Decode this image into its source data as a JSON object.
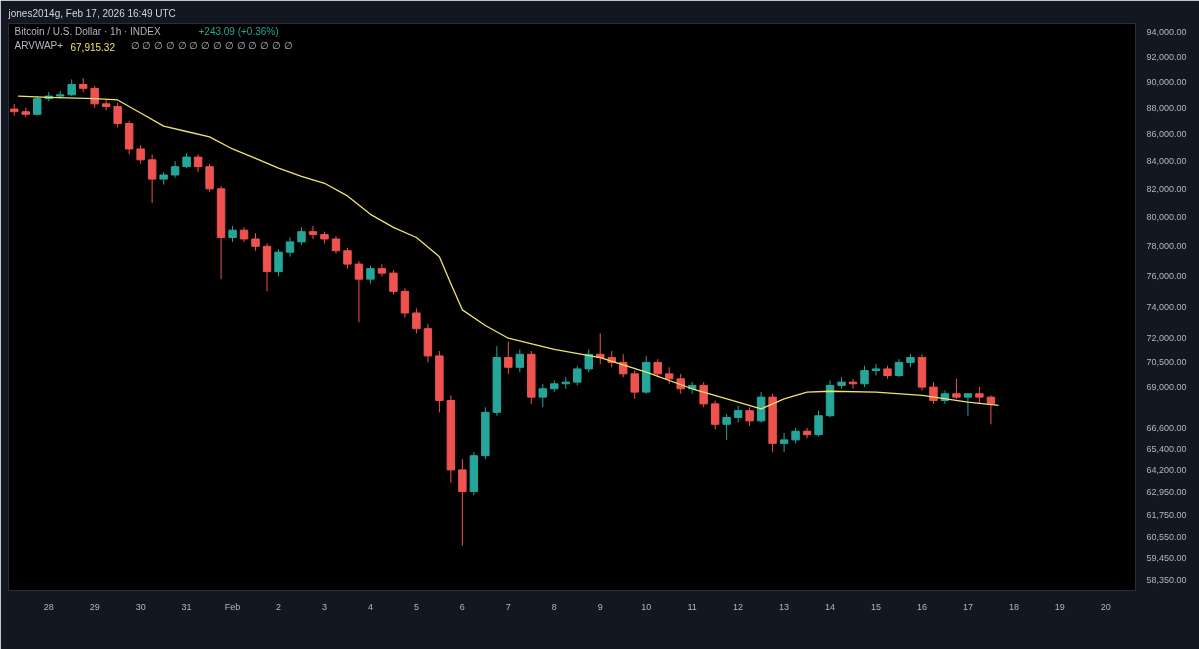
{
  "chart_data": {
    "type": "candlestick",
    "title": "Bitcoin / U.S. Dollar · 1h · INDEX",
    "annotations": [
      "jones2014g, Feb 17, 2026 16:49 UTC",
      "+243.09 (+0.36%)",
      "∅ ∅ ∅ ∅ ∅ ∅ ∅ ∅ ∅ ∅ ∅ ∅ ∅ ∅",
      "67,915.32"
    ],
    "x": [
      "2026-01-27T06:00",
      "2026-01-27T12:00",
      "2026-01-27T18:00",
      "2026-01-28T00:00",
      "2026-01-28T06:00",
      "2026-01-28T12:00",
      "2026-01-28T18:00",
      "2026-01-29T00:00",
      "2026-01-29T06:00",
      "2026-01-29T12:00",
      "2026-01-29T18:00",
      "2026-01-30T00:00",
      "2026-01-30T06:00",
      "2026-01-30T12:00",
      "2026-01-30T18:00",
      "2026-01-31T00:00",
      "2026-01-31T06:00",
      "2026-01-31T12:00",
      "2026-01-31T18:00",
      "2026-02-01T00:00",
      "2026-02-01T06:00",
      "2026-02-01T12:00",
      "2026-02-01T18:00",
      "2026-02-02T00:00",
      "2026-02-02T06:00",
      "2026-02-02T12:00",
      "2026-02-02T18:00",
      "2026-02-03T00:00",
      "2026-02-03T06:00",
      "2026-02-03T12:00",
      "2026-02-03T18:00",
      "2026-02-04T00:00",
      "2026-02-04T06:00",
      "2026-02-04T12:00",
      "2026-02-04T18:00",
      "2026-02-05T00:00",
      "2026-02-05T06:00",
      "2026-02-05T12:00",
      "2026-02-05T18:00",
      "2026-02-06T00:00",
      "2026-02-06T06:00",
      "2026-02-06T12:00",
      "2026-02-06T18:00",
      "2026-02-07T00:00",
      "2026-02-07T06:00",
      "2026-02-07T12:00",
      "2026-02-07T18:00",
      "2026-02-08T00:00",
      "2026-02-08T06:00",
      "2026-02-08T12:00",
      "2026-02-08T18:00",
      "2026-02-09T00:00",
      "2026-02-09T06:00",
      "2026-02-09T12:00",
      "2026-02-09T18:00",
      "2026-02-10T00:00",
      "2026-02-10T06:00",
      "2026-02-10T12:00",
      "2026-02-10T18:00",
      "2026-02-11T00:00",
      "2026-02-11T06:00",
      "2026-02-11T12:00",
      "2026-02-11T18:00",
      "2026-02-12T00:00",
      "2026-02-12T06:00",
      "2026-02-12T12:00",
      "2026-02-12T18:00",
      "2026-02-13T00:00",
      "2026-02-13T06:00",
      "2026-02-13T12:00",
      "2026-02-13T18:00",
      "2026-02-14T00:00",
      "2026-02-14T06:00",
      "2026-02-14T12:00",
      "2026-02-14T18:00",
      "2026-02-15T00:00",
      "2026-02-15T06:00",
      "2026-02-15T12:00",
      "2026-02-15T18:00",
      "2026-02-16T00:00",
      "2026-02-16T06:00",
      "2026-02-16T12:00",
      "2026-02-16T18:00",
      "2026-02-17T00:00",
      "2026-02-17T06:00",
      "2026-02-17T12:00"
    ],
    "ohlc": [
      [
        87900,
        88300,
        87400,
        87700
      ],
      [
        87700,
        88000,
        87300,
        87500
      ],
      [
        87500,
        88900,
        87400,
        88700
      ],
      [
        88700,
        89200,
        88500,
        88900
      ],
      [
        88900,
        89300,
        88700,
        89000
      ],
      [
        89000,
        90200,
        88900,
        89800
      ],
      [
        89800,
        90300,
        89200,
        89500
      ],
      [
        89500,
        89700,
        88000,
        88300
      ],
      [
        88300,
        88600,
        87800,
        88100
      ],
      [
        88100,
        88400,
        86500,
        86800
      ],
      [
        86800,
        87000,
        84500,
        84900
      ],
      [
        84900,
        85200,
        83800,
        84100
      ],
      [
        84100,
        84500,
        81000,
        82700
      ],
      [
        82700,
        83200,
        82300,
        83000
      ],
      [
        83000,
        84000,
        82800,
        83600
      ],
      [
        83600,
        84600,
        83500,
        84300
      ],
      [
        84300,
        84500,
        83200,
        83600
      ],
      [
        83600,
        83800,
        81800,
        82000
      ],
      [
        82000,
        82200,
        75800,
        78600
      ],
      [
        78600,
        79400,
        78300,
        79100
      ],
      [
        79100,
        79300,
        78300,
        78500
      ],
      [
        78500,
        78900,
        77700,
        78000
      ],
      [
        78000,
        78200,
        75000,
        76300
      ],
      [
        76300,
        77800,
        76000,
        77600
      ],
      [
        77600,
        78600,
        77300,
        78300
      ],
      [
        78300,
        79300,
        78100,
        79000
      ],
      [
        79000,
        79400,
        78500,
        78800
      ],
      [
        78800,
        79000,
        78200,
        78500
      ],
      [
        78500,
        78700,
        77500,
        77700
      ],
      [
        77700,
        77900,
        76500,
        76800
      ],
      [
        76800,
        77000,
        73000,
        75800
      ],
      [
        75800,
        76700,
        75500,
        76500
      ],
      [
        76500,
        76800,
        76000,
        76200
      ],
      [
        76200,
        76400,
        74800,
        75000
      ],
      [
        75000,
        75200,
        73300,
        73600
      ],
      [
        73600,
        73900,
        72300,
        72600
      ],
      [
        72600,
        72900,
        70500,
        70900
      ],
      [
        70900,
        71200,
        67500,
        68200
      ],
      [
        68200,
        68500,
        63500,
        64200
      ],
      [
        64200,
        64800,
        60100,
        63000
      ],
      [
        63000,
        65200,
        62800,
        65000
      ],
      [
        65000,
        67800,
        64800,
        67500
      ],
      [
        67500,
        71500,
        67300,
        70800
      ],
      [
        70800,
        71800,
        69800,
        70200
      ],
      [
        70200,
        71300,
        69900,
        71000
      ],
      [
        71000,
        71200,
        68000,
        68400
      ],
      [
        68400,
        69200,
        67800,
        68900
      ],
      [
        68900,
        69400,
        68700,
        69200
      ],
      [
        69200,
        69600,
        68900,
        69300
      ],
      [
        69300,
        70300,
        69100,
        70100
      ],
      [
        70100,
        71300,
        69900,
        71000
      ],
      [
        71000,
        72300,
        70400,
        70800
      ],
      [
        70800,
        71200,
        70200,
        70500
      ],
      [
        70500,
        71000,
        69600,
        69800
      ],
      [
        69800,
        70000,
        68300,
        68700
      ],
      [
        68700,
        70900,
        68600,
        70500
      ],
      [
        70500,
        70700,
        69600,
        69800
      ],
      [
        69800,
        70200,
        69200,
        69500
      ],
      [
        69500,
        69800,
        68600,
        68900
      ],
      [
        68900,
        69300,
        68600,
        69100
      ],
      [
        69100,
        69300,
        67800,
        68000
      ],
      [
        68000,
        68200,
        66500,
        66800
      ],
      [
        66800,
        67400,
        65900,
        67200
      ],
      [
        67200,
        67900,
        66900,
        67600
      ],
      [
        67600,
        67800,
        66700,
        67000
      ],
      [
        67000,
        68700,
        66900,
        68400
      ],
      [
        68400,
        68600,
        65200,
        65700
      ],
      [
        65700,
        66300,
        65200,
        65900
      ],
      [
        65900,
        66600,
        65700,
        66400
      ],
      [
        66400,
        66600,
        66000,
        66200
      ],
      [
        66200,
        67600,
        66100,
        67300
      ],
      [
        67300,
        69400,
        67200,
        69100
      ],
      [
        69100,
        69600,
        68900,
        69300
      ],
      [
        69300,
        69500,
        68900,
        69200
      ],
      [
        69200,
        70300,
        69000,
        70000
      ],
      [
        70000,
        70400,
        69700,
        70100
      ],
      [
        70100,
        70300,
        69500,
        69700
      ],
      [
        69700,
        70700,
        69600,
        70500
      ],
      [
        70500,
        71000,
        70200,
        70800
      ],
      [
        70800,
        71000,
        68800,
        69000
      ],
      [
        69000,
        69300,
        68000,
        68200
      ],
      [
        68200,
        68800,
        68000,
        68600
      ],
      [
        68600,
        69500,
        68300,
        68400
      ],
      [
        68400,
        68600,
        67300,
        68600
      ],
      [
        68600,
        69000,
        68000,
        68400
      ],
      [
        68400,
        68500,
        66800,
        68000
      ]
    ],
    "colors": [
      "#ef5350",
      "#ef5350",
      "#26a69a",
      "#26a69a",
      "#26a69a",
      "#26a69a",
      "#ef5350",
      "#ef5350",
      "#ef5350",
      "#ef5350",
      "#ef5350",
      "#ef5350",
      "#ef5350",
      "#26a69a",
      "#26a69a",
      "#26a69a",
      "#ef5350",
      "#ef5350",
      "#ef5350",
      "#26a69a",
      "#ef5350",
      "#ef5350",
      "#ef5350",
      "#26a69a",
      "#26a69a",
      "#26a69a",
      "#ef5350",
      "#ef5350",
      "#ef5350",
      "#ef5350",
      "#ef5350",
      "#26a69a",
      "#ef5350",
      "#ef5350",
      "#ef5350",
      "#ef5350",
      "#ef5350",
      "#ef5350",
      "#ef5350",
      "#ef5350",
      "#26a69a",
      "#26a69a",
      "#26a69a",
      "#ef5350",
      "#26a69a",
      "#ef5350",
      "#26a69a",
      "#26a69a",
      "#26a69a",
      "#26a69a",
      "#26a69a",
      "#ef5350",
      "#ef5350",
      "#ef5350",
      "#ef5350",
      "#26a69a",
      "#ef5350",
      "#ef5350",
      "#ef5350",
      "#26a69a",
      "#ef5350",
      "#ef5350",
      "#26a69a",
      "#26a69a",
      "#ef5350",
      "#26a69a",
      "#ef5350",
      "#26a69a",
      "#26a69a",
      "#ef5350",
      "#26a69a",
      "#26a69a",
      "#26a69a",
      "#ef5350",
      "#26a69a",
      "#26a69a",
      "#ef5350",
      "#26a69a",
      "#26a69a",
      "#ef5350",
      "#ef5350",
      "#26a69a",
      "#ef5350",
      "#26a69a",
      "#ef5350",
      "#ef5350"
    ],
    "series": [
      {
        "type": "line",
        "name": "ARVWAP+",
        "color": "#f0e46a",
        "x": [
          "2026-01-27T08:00",
          "2026-01-28T00:00",
          "2026-01-29T00:00",
          "2026-01-29T12:00",
          "2026-01-30T00:00",
          "2026-01-30T12:00",
          "2026-01-31T00:00",
          "2026-01-31T12:00",
          "2026-02-01T00:00",
          "2026-02-01T12:00",
          "2026-02-02T00:00",
          "2026-02-02T12:00",
          "2026-02-03T00:00",
          "2026-02-03T12:00",
          "2026-02-04T00:00",
          "2026-02-04T12:00",
          "2026-02-05T00:00",
          "2026-02-05T12:00",
          "2026-02-05T18:00",
          "2026-02-06T00:00",
          "2026-02-06T12:00",
          "2026-02-07T00:00",
          "2026-02-08T00:00",
          "2026-02-09T00:00",
          "2026-02-10T00:00",
          "2026-02-11T00:00",
          "2026-02-12T00:00",
          "2026-02-12T12:00",
          "2026-02-13T00:00",
          "2026-02-13T12:00",
          "2026-02-14T00:00",
          "2026-02-15T00:00",
          "2026-02-16T00:00",
          "2026-02-17T00:00",
          "2026-02-17T16:00"
        ],
        "values": [
          88900,
          88800,
          88700,
          88600,
          87600,
          86600,
          86200,
          85800,
          84900,
          84200,
          83500,
          82900,
          82400,
          81500,
          80200,
          79300,
          78600,
          77300,
          75500,
          73800,
          72800,
          72000,
          71300,
          70800,
          69900,
          68900,
          68100,
          67700,
          68300,
          68700,
          68750,
          68700,
          68500,
          68100,
          67915.32
        ]
      }
    ],
    "log": true,
    "xlim": [
      "2026-01-27T03:00",
      "2026-02-20T15:30"
    ],
    "xticks": [
      {
        "value": "2026-01-28",
        "label": "28"
      },
      {
        "value": "2026-01-29",
        "label": "29"
      },
      {
        "value": "2026-01-30",
        "label": "30"
      },
      {
        "value": "2026-01-31",
        "label": "31"
      },
      {
        "value": "2026-02-01",
        "label": "Feb"
      },
      {
        "value": "2026-02-02",
        "label": "2"
      },
      {
        "value": "2026-02-03",
        "label": "3"
      },
      {
        "value": "2026-02-04",
        "label": "4"
      },
      {
        "value": "2026-02-05",
        "label": "5"
      },
      {
        "value": "2026-02-06",
        "label": "6"
      },
      {
        "value": "2026-02-07",
        "label": "7"
      },
      {
        "value": "2026-02-08",
        "label": "8"
      },
      {
        "value": "2026-02-09",
        "label": "9"
      },
      {
        "value": "2026-02-10",
        "label": "10"
      },
      {
        "value": "2026-02-11",
        "label": "11"
      },
      {
        "value": "2026-02-12",
        "label": "12"
      },
      {
        "value": "2026-02-13",
        "label": "13"
      },
      {
        "value": "2026-02-14",
        "label": "14"
      },
      {
        "value": "2026-02-15",
        "label": "15"
      },
      {
        "value": "2026-02-16",
        "label": "16"
      },
      {
        "value": "2026-02-17",
        "label": "17"
      },
      {
        "value": "2026-02-18",
        "label": "18"
      },
      {
        "value": "2026-02-19",
        "label": "19"
      },
      {
        "value": "2026-02-20",
        "label": "20"
      }
    ],
    "ylim": [
      57800,
      94700
    ],
    "yticks": [
      {
        "value": 58350,
        "label": "58,350.00"
      },
      {
        "value": 59450,
        "label": "59,450.00"
      },
      {
        "value": 60550,
        "label": "60,550.00"
      },
      {
        "value": 61750,
        "label": "61,750.00"
      },
      {
        "value": 62950,
        "label": "62,950.00"
      },
      {
        "value": 64200,
        "label": "64,200.00"
      },
      {
        "value": 65400,
        "label": "65,400.00"
      },
      {
        "value": 66600,
        "label": "66,600.00"
      },
      {
        "value": 69000,
        "label": "69,000.00"
      },
      {
        "value": 70500,
        "label": "70,500.00"
      },
      {
        "value": 72000,
        "label": "72,000.00"
      },
      {
        "value": 74000,
        "label": "74,000.00"
      },
      {
        "value": 76000,
        "label": "76,000.00"
      },
      {
        "value": 78000,
        "label": "78,000.00"
      },
      {
        "value": 80000,
        "label": "80,000.00"
      },
      {
        "value": 82000,
        "label": "82,000.00"
      },
      {
        "value": 84000,
        "label": "84,000.00"
      },
      {
        "value": 86000,
        "label": "86,000.00"
      },
      {
        "value": 88000,
        "label": "88,000.00"
      },
      {
        "value": 90000,
        "label": "90,000.00"
      },
      {
        "value": 92000,
        "label": "92,000.00"
      },
      {
        "value": 94000,
        "label": "94,000.00"
      }
    ],
    "grid": false,
    "legend": false
  }
}
